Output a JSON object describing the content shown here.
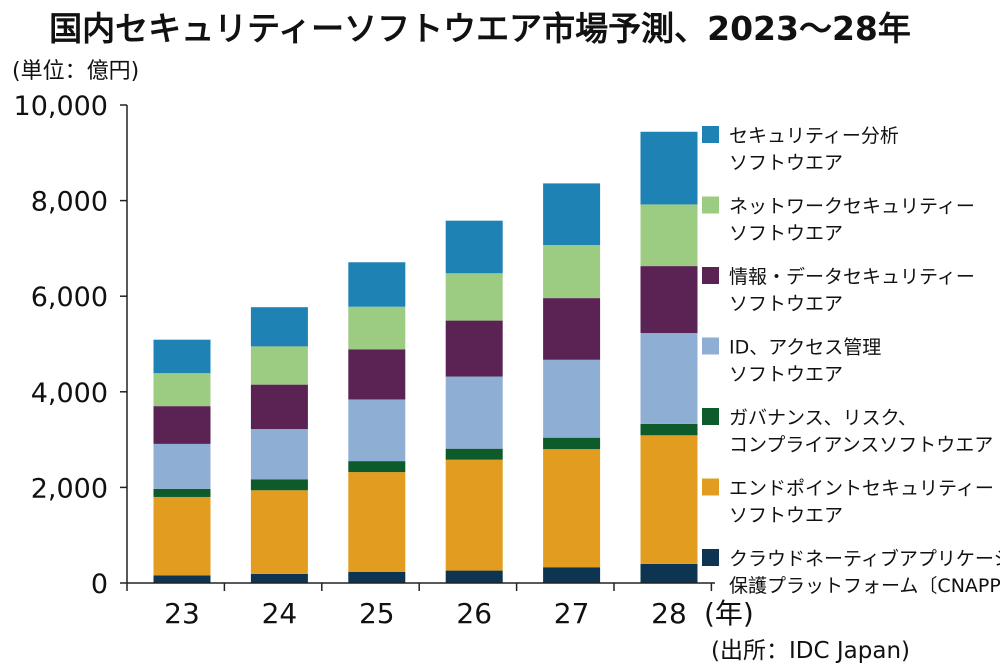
{
  "chart_data": {
    "type": "bar",
    "stacked": true,
    "title": "国内セキュリティーソフトウエア市場予測、2023～28年",
    "unit_label": "(単位：億円)",
    "x_unit_label": "(年)",
    "source": "(出所：IDC Japan)",
    "categories": [
      "23",
      "24",
      "25",
      "26",
      "27",
      "28"
    ],
    "ylim": [
      0,
      10000
    ],
    "yticks": [
      0,
      2000,
      4000,
      6000,
      8000,
      10000
    ],
    "ytick_labels": [
      "0",
      "2,000",
      "4,000",
      "6,000",
      "8,000",
      "10,000"
    ],
    "grid": false,
    "legend_position": "right",
    "series": [
      {
        "name": "クラウドネーティブアプリケーション保護プラットフォーム(CNAPP)",
        "legend_lines": [
          "クラウドネーティブアプリケーション",
          "保護プラットフォーム〔CNAPP〕"
        ],
        "color": "#0d3450",
        "values": [
          160,
          190,
          230,
          260,
          330,
          400
        ]
      },
      {
        "name": "エンドポイントセキュリティーソフトウエア",
        "legend_lines": [
          "エンドポイントセキュリティー",
          "ソフトウエア"
        ],
        "color": "#e29c1f",
        "values": [
          1640,
          1750,
          2090,
          2320,
          2470,
          2690
        ]
      },
      {
        "name": "ガバナンス、リスク、コンプライアンスソフトウエア",
        "legend_lines": [
          "ガバナンス、リスク、",
          "コンプライアンスソフトウエア"
        ],
        "color": "#0d5a2a",
        "values": [
          170,
          230,
          230,
          230,
          240,
          240
        ]
      },
      {
        "name": "ID、アクセス管理ソフトウエア",
        "legend_lines": [
          "ID、アクセス管理",
          "ソフトウエア"
        ],
        "color": "#8faed4",
        "values": [
          940,
          1050,
          1290,
          1510,
          1630,
          1900
        ]
      },
      {
        "name": "情報・データセキュリティーソフトウエア",
        "legend_lines": [
          "情報・データセキュリティー",
          "ソフトウエア"
        ],
        "color": "#5a2354",
        "values": [
          790,
          930,
          1050,
          1170,
          1290,
          1400
        ]
      },
      {
        "name": "ネットワークセキュリティーソフトウエア",
        "legend_lines": [
          "ネットワークセキュリティー",
          "ソフトウエア"
        ],
        "color": "#9ccb82",
        "values": [
          690,
          800,
          890,
          990,
          1110,
          1290
        ]
      },
      {
        "name": "セキュリティー分析ソフトウエア",
        "legend_lines": [
          "セキュリティー分析",
          "ソフトウエア"
        ],
        "color": "#1f82b5",
        "values": [
          700,
          820,
          930,
          1100,
          1290,
          1520
        ]
      }
    ]
  }
}
